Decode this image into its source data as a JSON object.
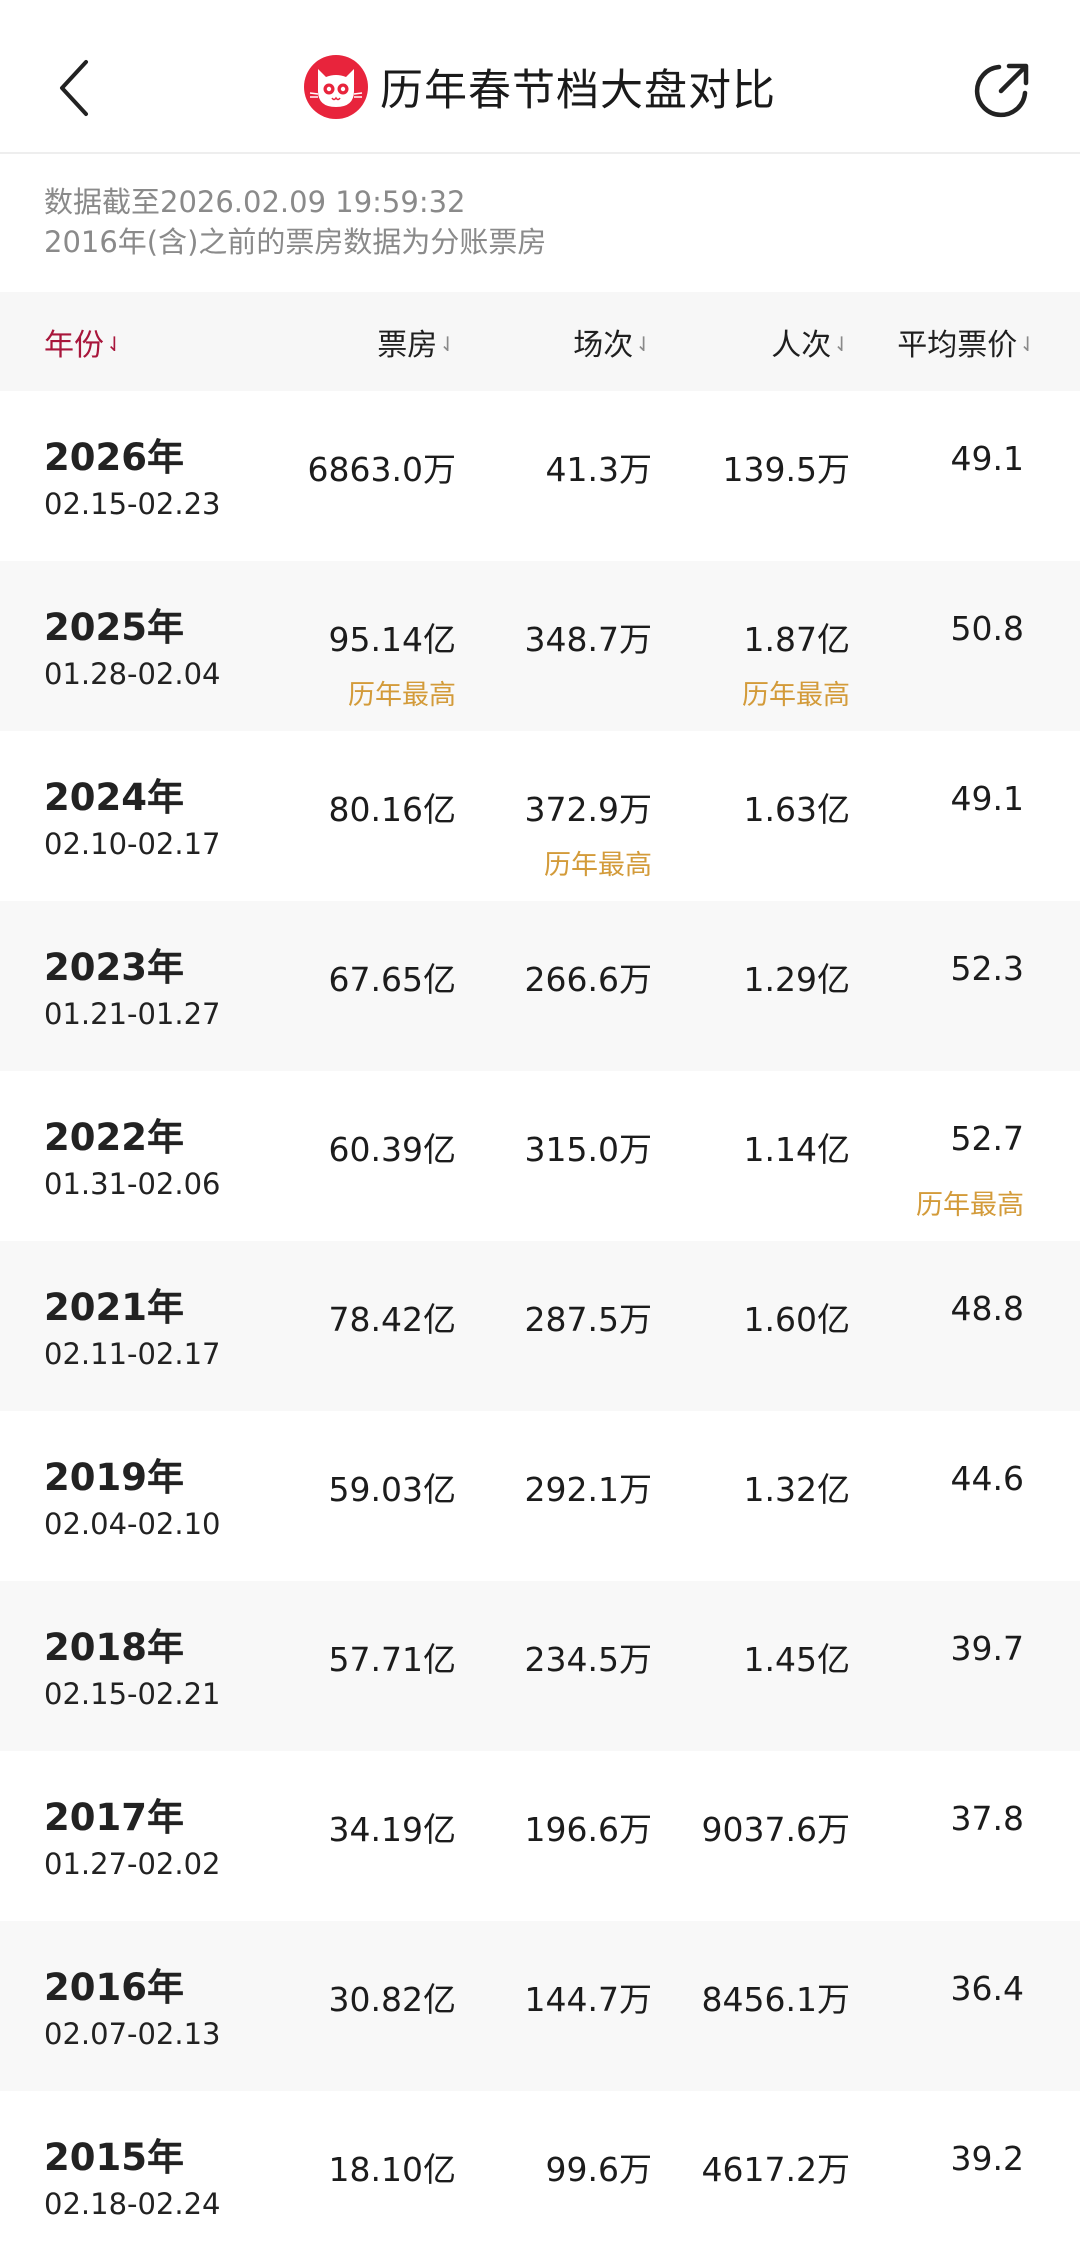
{
  "header": {
    "title": "历年春节档大盘对比",
    "back_icon": "chevron-left-icon",
    "share_icon": "share-icon",
    "logo_color": "#e8243c"
  },
  "notice": {
    "line1": "数据截至2026.02.09 19:59:32",
    "line2": "2016年(含)之前的票房数据为分账票房"
  },
  "table": {
    "sort_arrow": "⇃",
    "columns": [
      {
        "key": "year",
        "label": "年份",
        "active": true
      },
      {
        "key": "box_office",
        "label": "票房"
      },
      {
        "key": "shows",
        "label": "场次"
      },
      {
        "key": "admissions",
        "label": "人次"
      },
      {
        "key": "avg_price",
        "label": "平均票价"
      }
    ],
    "record_label": "历年最高",
    "record_color": "#d39b3a",
    "active_color": "#a8163b",
    "rows": [
      {
        "year": "2026年",
        "dates": "02.15-02.23",
        "box_office": "6863.0万",
        "shows": "41.3万",
        "admissions": "139.5万",
        "avg_price": "49.1",
        "records": []
      },
      {
        "year": "2025年",
        "dates": "01.28-02.04",
        "box_office": "95.14亿",
        "shows": "348.7万",
        "admissions": "1.87亿",
        "avg_price": "50.8",
        "records": [
          "box_office",
          "admissions"
        ]
      },
      {
        "year": "2024年",
        "dates": "02.10-02.17",
        "box_office": "80.16亿",
        "shows": "372.9万",
        "admissions": "1.63亿",
        "avg_price": "49.1",
        "records": [
          "shows"
        ]
      },
      {
        "year": "2023年",
        "dates": "01.21-01.27",
        "box_office": "67.65亿",
        "shows": "266.6万",
        "admissions": "1.29亿",
        "avg_price": "52.3",
        "records": []
      },
      {
        "year": "2022年",
        "dates": "01.31-02.06",
        "box_office": "60.39亿",
        "shows": "315.0万",
        "admissions": "1.14亿",
        "avg_price": "52.7",
        "records": [
          "avg_price"
        ]
      },
      {
        "year": "2021年",
        "dates": "02.11-02.17",
        "box_office": "78.42亿",
        "shows": "287.5万",
        "admissions": "1.60亿",
        "avg_price": "48.8",
        "records": []
      },
      {
        "year": "2019年",
        "dates": "02.04-02.10",
        "box_office": "59.03亿",
        "shows": "292.1万",
        "admissions": "1.32亿",
        "avg_price": "44.6",
        "records": []
      },
      {
        "year": "2018年",
        "dates": "02.15-02.21",
        "box_office": "57.71亿",
        "shows": "234.5万",
        "admissions": "1.45亿",
        "avg_price": "39.7",
        "records": []
      },
      {
        "year": "2017年",
        "dates": "01.27-02.02",
        "box_office": "34.19亿",
        "shows": "196.6万",
        "admissions": "9037.6万",
        "avg_price": "37.8",
        "records": []
      },
      {
        "year": "2016年",
        "dates": "02.07-02.13",
        "box_office": "30.82亿",
        "shows": "144.7万",
        "admissions": "8456.1万",
        "avg_price": "36.4",
        "records": []
      },
      {
        "year": "2015年",
        "dates": "02.18-02.24",
        "box_office": "18.10亿",
        "shows": "99.6万",
        "admissions": "4617.2万",
        "avg_price": "39.2",
        "records": []
      }
    ]
  }
}
